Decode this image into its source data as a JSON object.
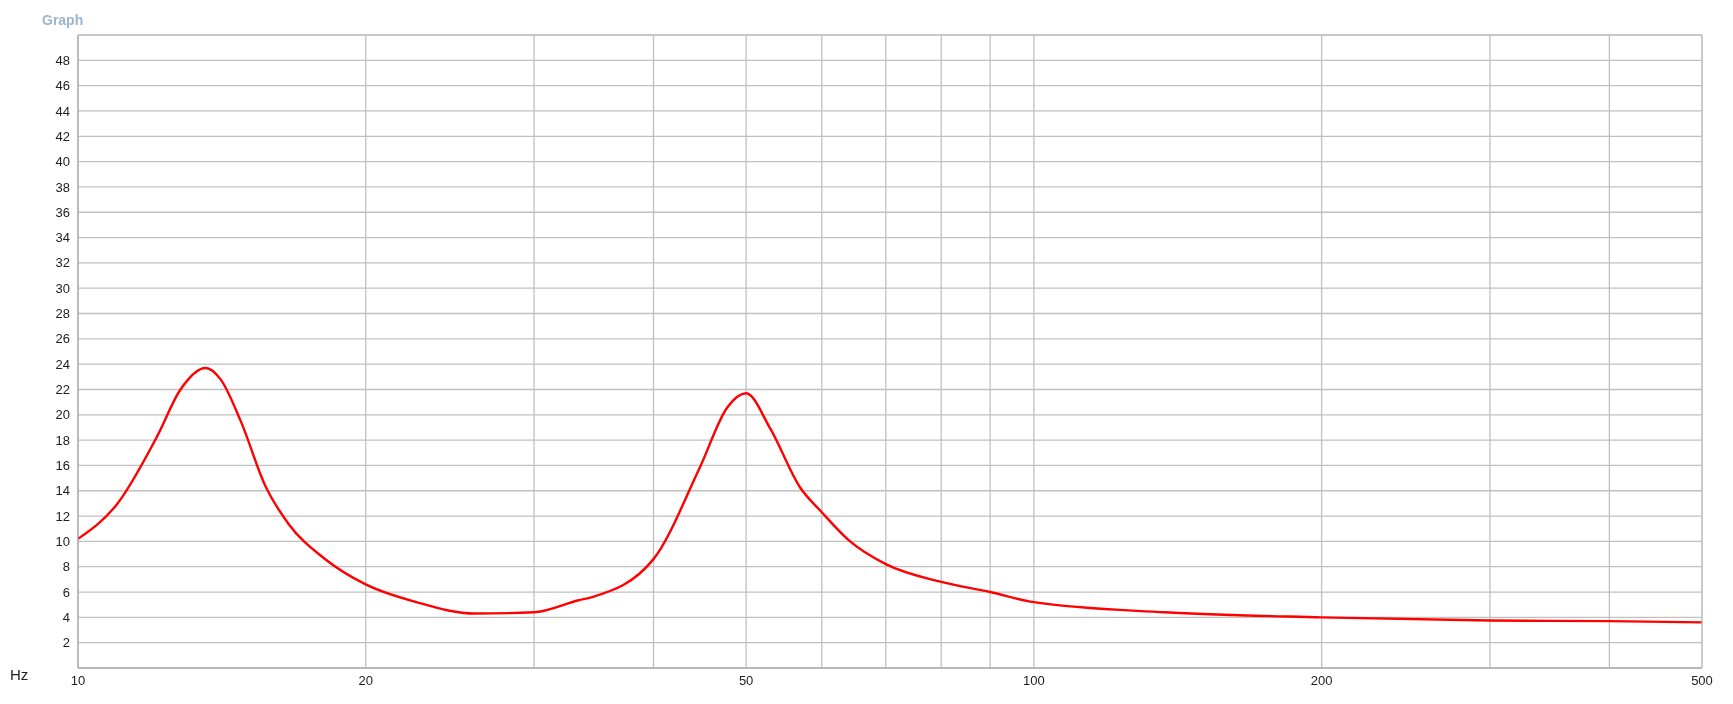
{
  "chart_data": {
    "type": "line",
    "title": "Graph",
    "xlabel": "Hz",
    "log": "x",
    "grid": true,
    "marker": "none",
    "line_style": "solid",
    "x": [
      10,
      11,
      12.1,
      12.8,
      13.6,
      14.1,
      14.8,
      15.7,
      16.6,
      18.1,
      20,
      22.6,
      26,
      30,
      33.4,
      34.5,
      40,
      44.7,
      47.8,
      50,
      53,
      56.9,
      60,
      64,
      70,
      80,
      90,
      100,
      137,
      200,
      300,
      400,
      500
    ],
    "series": [
      {
        "color": "#ff0000",
        "values": [
          10.2,
          13.0,
          18.3,
          22.0,
          23.7,
          22.8,
          19.5,
          14.4,
          11.4,
          8.65,
          6.6,
          5.2,
          4.3,
          4.4,
          5.35,
          5.6,
          8.6,
          15.8,
          20.6,
          21.7,
          18.9,
          14.3,
          12.3,
          10.1,
          8.2,
          6.8,
          6.0,
          5.2,
          4.4,
          4.0,
          3.75,
          3.7,
          3.6
        ]
      }
    ],
    "xlim": [
      10,
      500
    ],
    "xticks": [
      10,
      20,
      {
        "value": 30,
        "label": null
      },
      {
        "value": 40,
        "label": null
      },
      50,
      {
        "value": 60,
        "label": null
      },
      {
        "value": 70,
        "label": null
      },
      {
        "value": 80,
        "label": null
      },
      {
        "value": 90,
        "label": null
      },
      100,
      200,
      {
        "value": 300,
        "label": null
      },
      {
        "value": 400,
        "label": null
      },
      500
    ],
    "ylim": [
      0,
      50
    ],
    "yticks": [
      2,
      4,
      6,
      8,
      10,
      12,
      14,
      16,
      18,
      20,
      22,
      24,
      26,
      28,
      30,
      32,
      34,
      36,
      38,
      40,
      42,
      44,
      46,
      48
    ]
  }
}
